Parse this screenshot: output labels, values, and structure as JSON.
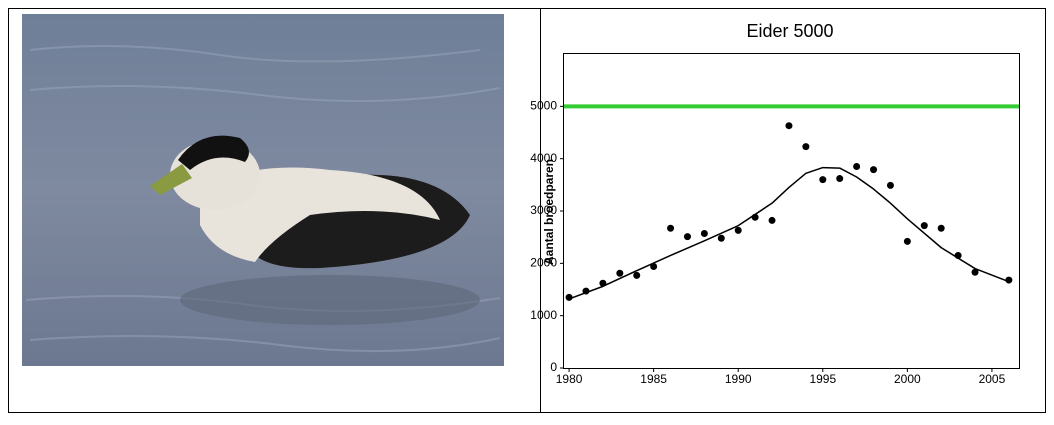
{
  "chart_data": {
    "type": "scatter",
    "title": "Eider 5000",
    "y_label": "Aantal broedparen",
    "x": [
      1980,
      1981,
      1982,
      1983,
      1984,
      1985,
      1986,
      1987,
      1988,
      1989,
      1990,
      1991,
      1992,
      1993,
      1994,
      1995,
      1996,
      1997,
      1998,
      1999,
      2000,
      2001,
      2002,
      2003,
      2004,
      2006
    ],
    "values": [
      1350,
      1470,
      1620,
      1810,
      1770,
      1940,
      2670,
      2510,
      2570,
      2480,
      2630,
      2880,
      2820,
      4630,
      4230,
      3600,
      3620,
      3850,
      3790,
      3490,
      2420,
      2720,
      2670,
      2150,
      1830,
      1680
    ],
    "color": "#000000",
    "trend": {
      "x": [
        1980,
        1982,
        1984,
        1986,
        1988,
        1990,
        1992,
        1993,
        1994,
        1995,
        1996,
        1997,
        1998,
        1999,
        2000,
        2002,
        2004,
        2006
      ],
      "values": [
        1320,
        1560,
        1860,
        2150,
        2430,
        2720,
        3150,
        3450,
        3720,
        3830,
        3820,
        3650,
        3420,
        3150,
        2850,
        2300,
        1900,
        1650
      ],
      "color": "#000000"
    },
    "reference_line": {
      "value": 5000,
      "color": "#33cc33"
    },
    "xlim": [
      1979.7,
      2006.6
    ],
    "xticks": [
      1980,
      1985,
      1990,
      1995,
      2000,
      2005
    ],
    "ylim": [
      0,
      6000
    ],
    "yticks": [
      0,
      1000,
      2000,
      3000,
      4000,
      5000
    ]
  }
}
